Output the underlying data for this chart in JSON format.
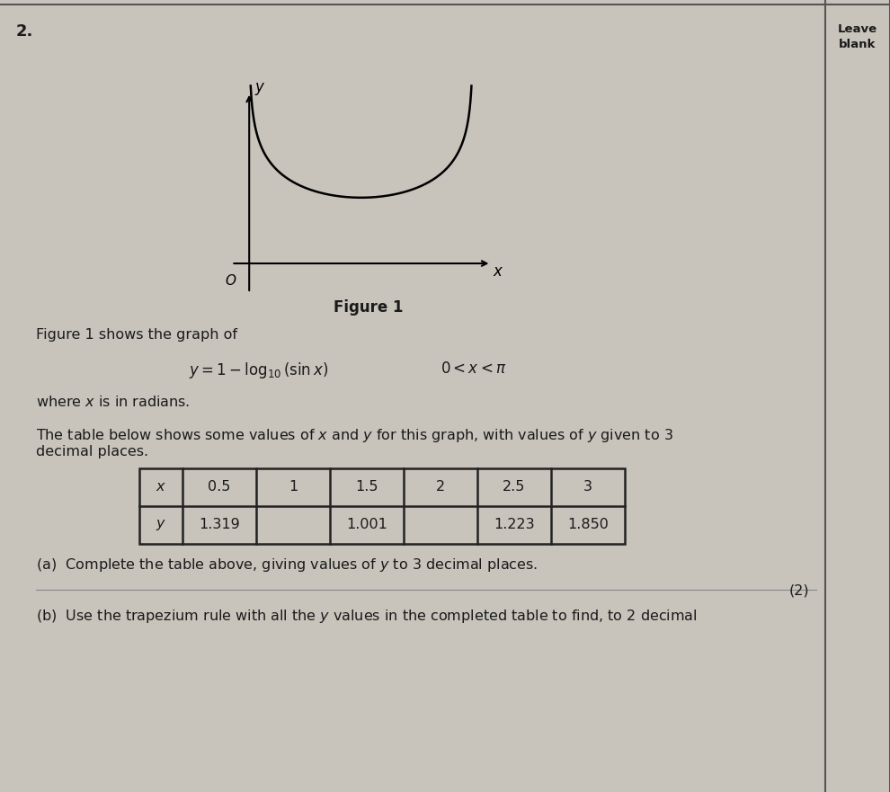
{
  "page_bg": "#c8c4bc",
  "right_panel_bg": "#c8c4bc",
  "question_number": "2.",
  "leave_blank_text": "Leave\nblank",
  "figure_title": "Figure 1",
  "figure_1_shows": "Figure 1 shows the graph of",
  "equation_latex": "$y = 1 - \\log_{10}(\\sin x)$",
  "equation_domain": "$0 < x < \\pi$",
  "where_x": "where $x$ is in radians.",
  "table_description_line1": "The table below shows some values of $x$ and $y$ for this graph, with values of $y$ given to 3",
  "table_description_line2": "decimal places.",
  "table_x_values": [
    "0.5",
    "1",
    "1.5",
    "2",
    "2.5",
    "3"
  ],
  "table_y_values": [
    "1.319",
    "",
    "1.001",
    "",
    "1.223",
    "1.850"
  ],
  "part_a": "(a)  Complete the table above, giving values of $y$ to 3 decimal places.",
  "part_a_marks": "(2)",
  "part_b_start": "(b)  Use the trapezium rule with all the $y$ values in the completed table to find, to 2 decimal",
  "border_color": "#444444",
  "text_color": "#1a1a1a",
  "table_bg": "#c8c4bc",
  "table_border": "#222222",
  "right_border_color": "#555555"
}
